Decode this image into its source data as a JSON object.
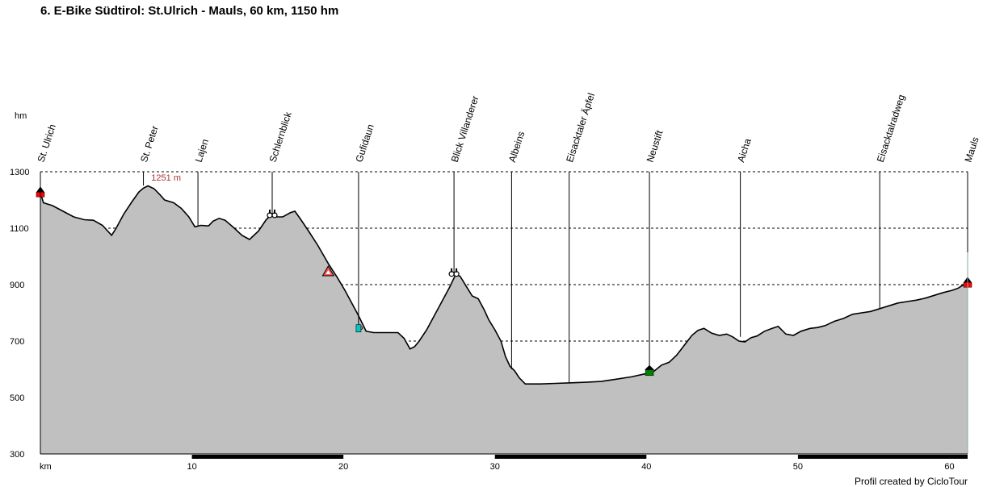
{
  "title": "6. E-Bike Südtirol: St.Ulrich - Mauls, 60 km, 1150 hm",
  "credit": "Profil created by CicloTour",
  "chart_data": {
    "type": "area",
    "ylabel": "hm",
    "xlabel": "km",
    "xlim": [
      0,
      61.2
    ],
    "ylim": [
      300,
      1300
    ],
    "yticks": [
      300,
      500,
      700,
      900,
      1100,
      1300
    ],
    "xticks": [
      10,
      20,
      30,
      40,
      50,
      60
    ],
    "grid": "horizontal dashed",
    "peak_annotation": {
      "x": 7.0,
      "y": 1251,
      "label": "1251 m"
    },
    "profile": [
      [
        0.0,
        1225
      ],
      [
        0.2,
        1190
      ],
      [
        0.8,
        1180
      ],
      [
        1.5,
        1160
      ],
      [
        2.2,
        1140
      ],
      [
        2.9,
        1130
      ],
      [
        3.5,
        1128
      ],
      [
        4.1,
        1110
      ],
      [
        4.7,
        1075
      ],
      [
        5.0,
        1100
      ],
      [
        5.5,
        1150
      ],
      [
        6.0,
        1190
      ],
      [
        6.5,
        1228
      ],
      [
        6.8,
        1242
      ],
      [
        7.1,
        1250
      ],
      [
        7.5,
        1240
      ],
      [
        7.9,
        1218
      ],
      [
        8.2,
        1200
      ],
      [
        8.8,
        1190
      ],
      [
        9.3,
        1170
      ],
      [
        9.8,
        1140
      ],
      [
        10.2,
        1105
      ],
      [
        10.6,
        1110
      ],
      [
        11.1,
        1108
      ],
      [
        11.4,
        1125
      ],
      [
        11.8,
        1135
      ],
      [
        12.2,
        1128
      ],
      [
        12.8,
        1100
      ],
      [
        13.3,
        1075
      ],
      [
        13.8,
        1060
      ],
      [
        14.4,
        1090
      ],
      [
        14.9,
        1130
      ],
      [
        15.2,
        1145
      ],
      [
        15.6,
        1140
      ],
      [
        16.0,
        1140
      ],
      [
        16.5,
        1155
      ],
      [
        16.8,
        1160
      ],
      [
        17.2,
        1130
      ],
      [
        17.7,
        1090
      ],
      [
        18.3,
        1040
      ],
      [
        19.0,
        975
      ],
      [
        19.6,
        925
      ],
      [
        20.1,
        880
      ],
      [
        20.6,
        830
      ],
      [
        21.0,
        790
      ],
      [
        21.5,
        735
      ],
      [
        22.0,
        730
      ],
      [
        22.5,
        730
      ],
      [
        23.0,
        730
      ],
      [
        23.6,
        730
      ],
      [
        24.0,
        710
      ],
      [
        24.4,
        672
      ],
      [
        24.7,
        680
      ],
      [
        25.0,
        700
      ],
      [
        25.5,
        740
      ],
      [
        26.0,
        790
      ],
      [
        26.5,
        840
      ],
      [
        27.0,
        890
      ],
      [
        27.4,
        935
      ],
      [
        27.7,
        930
      ],
      [
        28.1,
        895
      ],
      [
        28.5,
        860
      ],
      [
        28.9,
        850
      ],
      [
        29.3,
        810
      ],
      [
        29.6,
        775
      ],
      [
        30.0,
        740
      ],
      [
        30.4,
        700
      ],
      [
        30.7,
        645
      ],
      [
        31.0,
        610
      ],
      [
        31.3,
        595
      ],
      [
        31.6,
        570
      ],
      [
        32.0,
        548
      ],
      [
        33.0,
        548
      ],
      [
        34.0,
        550
      ],
      [
        35.0,
        552
      ],
      [
        36.0,
        554
      ],
      [
        37.0,
        557
      ],
      [
        38.0,
        565
      ],
      [
        39.0,
        573
      ],
      [
        40.0,
        585
      ],
      [
        40.5,
        593
      ],
      [
        41.0,
        615
      ],
      [
        41.5,
        625
      ],
      [
        42.0,
        650
      ],
      [
        42.5,
        685
      ],
      [
        43.0,
        720
      ],
      [
        43.4,
        738
      ],
      [
        43.8,
        745
      ],
      [
        44.3,
        728
      ],
      [
        44.8,
        720
      ],
      [
        45.3,
        725
      ],
      [
        45.7,
        715
      ],
      [
        46.1,
        700
      ],
      [
        46.5,
        697
      ],
      [
        46.9,
        712
      ],
      [
        47.3,
        718
      ],
      [
        47.8,
        735
      ],
      [
        48.3,
        745
      ],
      [
        48.7,
        752
      ],
      [
        49.2,
        725
      ],
      [
        49.7,
        720
      ],
      [
        50.2,
        735
      ],
      [
        50.8,
        745
      ],
      [
        51.3,
        748
      ],
      [
        51.8,
        755
      ],
      [
        52.4,
        770
      ],
      [
        53.0,
        780
      ],
      [
        53.6,
        795
      ],
      [
        54.2,
        800
      ],
      [
        54.8,
        805
      ],
      [
        55.4,
        815
      ],
      [
        56.0,
        825
      ],
      [
        56.6,
        835
      ],
      [
        57.2,
        840
      ],
      [
        57.8,
        845
      ],
      [
        58.4,
        852
      ],
      [
        59.0,
        862
      ],
      [
        59.6,
        872
      ],
      [
        60.2,
        880
      ],
      [
        60.6,
        888
      ],
      [
        61.0,
        902
      ],
      [
        61.2,
        905
      ]
    ],
    "waypoints": [
      {
        "km": 0.0,
        "label": "St. Ulrich",
        "elev": 1225,
        "marker": "start"
      },
      {
        "km": 6.8,
        "label": "St. Peter",
        "elev": 1251,
        "marker": "none"
      },
      {
        "km": 10.4,
        "label": "Lajen",
        "elev": 1108,
        "marker": "none"
      },
      {
        "km": 15.3,
        "label": "Schlernblick",
        "elev": 1143,
        "marker": "binoculars"
      },
      {
        "km": 19.0,
        "label": "",
        "elev": 940,
        "marker": "warning"
      },
      {
        "km": 21.0,
        "label": "Gufidaun",
        "elev": 735,
        "marker": "cafe"
      },
      {
        "km": 27.3,
        "label": "Blick Villanderer",
        "elev": 935,
        "marker": "binoculars"
      },
      {
        "km": 31.1,
        "label": "Albeins",
        "elev": 600,
        "marker": "none"
      },
      {
        "km": 34.9,
        "label": "Eisacktaler Äpfel",
        "elev": 551,
        "marker": "none"
      },
      {
        "km": 40.2,
        "label": "Neustift",
        "elev": 592,
        "marker": "house"
      },
      {
        "km": 46.2,
        "label": "Aicha",
        "elev": 715,
        "marker": "none"
      },
      {
        "km": 55.4,
        "label": "Eisacktalradweg",
        "elev": 815,
        "marker": "none"
      },
      {
        "km": 61.2,
        "label": "Mauls",
        "elev": 905,
        "marker": "finish"
      }
    ],
    "colors": {
      "fill": "#c0c0c0",
      "line": "#000000",
      "start_marker": "#ff0000",
      "house_marker": "#008000",
      "cafe_marker": "#00c8c8",
      "peak_label": "#b03030"
    }
  }
}
